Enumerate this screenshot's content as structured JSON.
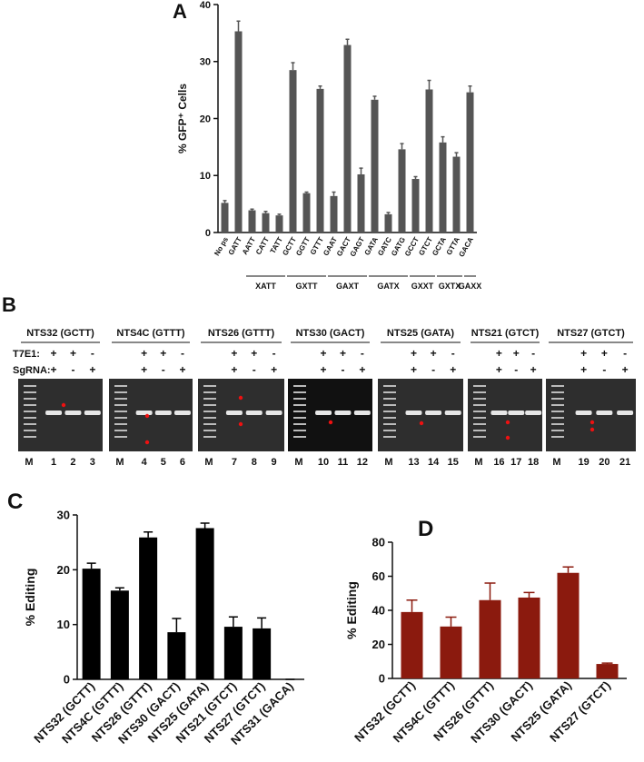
{
  "chart_data": [
    {
      "type": "bar",
      "panel": "A",
      "ylabel": "% GFP⁺ Cells",
      "categories": [
        "No ps",
        "GATT",
        "AATT",
        "CATT",
        "TATT",
        "GCTT",
        "GGTT",
        "GTTT",
        "GAAT",
        "GACT",
        "GAGT",
        "GATA",
        "GATC",
        "GATG",
        "GCCT",
        "GTCT",
        "GCTA",
        "GTTA",
        "GACA"
      ],
      "values": [
        5.2,
        35.3,
        3.9,
        3.4,
        3.0,
        28.5,
        6.9,
        25.2,
        6.4,
        32.9,
        10.2,
        23.3,
        3.2,
        14.6,
        9.4,
        25.1,
        15.8,
        13.3,
        24.6
      ],
      "errors": [
        0.4,
        1.8,
        0.2,
        0.3,
        0.2,
        1.3,
        0.2,
        0.5,
        0.7,
        1.0,
        1.1,
        0.6,
        0.3,
        1.0,
        0.4,
        1.6,
        1.0,
        0.7,
        1.1
      ],
      "groups": [
        "XATT",
        "GXTT",
        "GAXT",
        "GATX",
        "GXXT",
        "GXTX",
        "GAXX"
      ],
      "color": "#555555",
      "ylim": [
        0,
        40
      ],
      "yticks": [
        0,
        10,
        20,
        30,
        40
      ]
    },
    {
      "type": "bar",
      "panel": "C",
      "ylabel": "% Editing",
      "categories": [
        "NTS32 (GCTT)",
        "NTS4C (GTTT)",
        "NTS26 (GTTT)",
        "NTS30 (GACT)",
        "NTS25 (GATA)",
        "NTS21 (GTCT)",
        "NTS27 (GTCT)",
        "NTS31 (GACA)"
      ],
      "values": [
        20.2,
        16.2,
        25.9,
        8.6,
        27.6,
        9.6,
        9.3,
        0
      ],
      "errors": [
        1.0,
        0.5,
        1.0,
        2.5,
        0.9,
        1.8,
        1.9,
        0
      ],
      "color": "#000000",
      "ylim": [
        0,
        30
      ],
      "yticks": [
        0,
        10,
        20,
        30
      ]
    },
    {
      "type": "bar",
      "panel": "D",
      "ylabel": "% Editing",
      "categories": [
        "NTS32 (GCTT)",
        "NTS4C (GTTT)",
        "NTS26 (GTTT)",
        "NTS30 (GACT)",
        "NTS25 (GATA)",
        "NTS27 (GTCT)"
      ],
      "values": [
        39,
        30.5,
        46,
        47.5,
        62,
        8.5
      ],
      "errors": [
        7,
        5.5,
        10,
        3,
        3.5,
        0.5
      ],
      "color": "#8b1a0e",
      "ylim": [
        0,
        80
      ],
      "yticks": [
        0,
        20,
        40,
        60,
        80
      ]
    }
  ],
  "gel": {
    "panel": "B",
    "row_labels": [
      "T7E1:",
      "SgRNA:"
    ],
    "marker": "M",
    "panels": [
      {
        "title": "NTS32 (GCTT)",
        "lanes": [
          "1",
          "2",
          "3"
        ],
        "t7e1": [
          "+",
          "+",
          "-"
        ],
        "sgrna": [
          "+",
          "-",
          "+"
        ]
      },
      {
        "title": "NTS4C (GTTT)",
        "lanes": [
          "4",
          "5",
          "6"
        ],
        "t7e1": [
          "+",
          "+",
          "-"
        ],
        "sgrna": [
          "+",
          "-",
          "+"
        ]
      },
      {
        "title": "NTS26 (GTTT)",
        "lanes": [
          "7",
          "8",
          "9"
        ],
        "t7e1": [
          "+",
          "+",
          "-"
        ],
        "sgrna": [
          "+",
          "-",
          "+"
        ]
      },
      {
        "title": "NTS30 (GACT)",
        "lanes": [
          "10",
          "11",
          "12"
        ],
        "t7e1": [
          "+",
          "+",
          "-"
        ],
        "sgrna": [
          "+",
          "-",
          "+"
        ]
      },
      {
        "title": "NTS25 (GATA)",
        "lanes": [
          "13",
          "14",
          "15"
        ],
        "t7e1": [
          "+",
          "+",
          "-"
        ],
        "sgrna": [
          "+",
          "-",
          "+"
        ]
      },
      {
        "title": "NTS21 (GTCT)",
        "lanes": [
          "16",
          "17",
          "18"
        ],
        "t7e1": [
          "+",
          "+",
          "-"
        ],
        "sgrna": [
          "+",
          "-",
          "+"
        ]
      },
      {
        "title": "NTS27 (GTCT)",
        "lanes": [
          "19",
          "20",
          "21"
        ],
        "t7e1": [
          "+",
          "+",
          "-"
        ],
        "sgrna": [
          "+",
          "-",
          "+"
        ]
      }
    ]
  }
}
